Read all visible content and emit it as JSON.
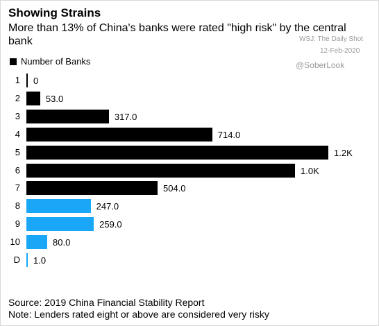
{
  "chart_data": {
    "type": "bar",
    "orientation": "horizontal",
    "title": "Showing Strains",
    "subtitle": "More than 13% of China's banks were rated \"high risk\" by the central bank",
    "annotations": [
      "WSJ: The Daily Shot",
      "12-Feb-2020",
      "@SoberLook"
    ],
    "categories": [
      "1",
      "2",
      "3",
      "4",
      "5",
      "6",
      "7",
      "8",
      "9",
      "10",
      "D"
    ],
    "series": [
      {
        "name": "Number of Banks",
        "color": "#000000",
        "values": [
          0,
          53,
          317,
          714,
          1160,
          1032,
          504,
          247,
          259,
          80,
          1
        ],
        "value_labels": [
          "0",
          "53.0",
          "317.0",
          "714.0",
          "1.2K",
          "1.0K",
          "504.0",
          "247.0",
          "259.0",
          "80.0",
          "1.0"
        ]
      }
    ],
    "colors": [
      "#000000",
      "#000000",
      "#000000",
      "#000000",
      "#000000",
      "#000000",
      "#000000",
      "#1aa7f7",
      "#1aa7f7",
      "#1aa7f7",
      "#1aa7f7"
    ],
    "source": "Source: 2019 China Financial Stability Report",
    "note": "Note: Lenders rated eight or above are considered very risky"
  }
}
